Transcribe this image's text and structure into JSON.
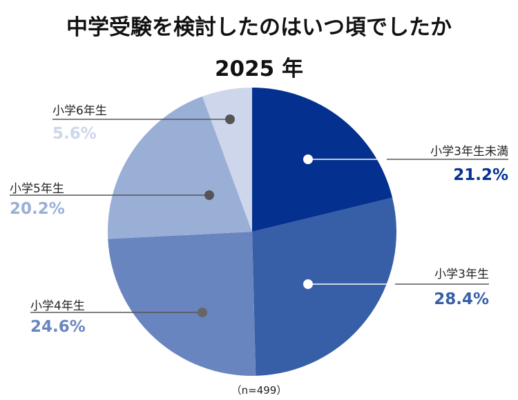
{
  "chart_data": {
    "type": "pie",
    "title": "中学受験を検討したのはいつ頃でしたか",
    "subtitle": "2025 年",
    "note": "（n=499）",
    "slices": [
      {
        "label": "小学3年生未満",
        "value": 21.2,
        "display": "21.2%",
        "color": "#04318F"
      },
      {
        "label": "小学3年生",
        "value": 28.4,
        "display": "28.4%",
        "color": "#365FA8"
      },
      {
        "label": "小学4年生",
        "value": 24.6,
        "display": "24.6%",
        "color": "#6985BF"
      },
      {
        "label": "小学5年生",
        "value": 20.2,
        "display": "20.2%",
        "color": "#9AAFD6"
      },
      {
        "label": "小学6年生",
        "value": 5.6,
        "display": "5.6%",
        "color": "#CDD6EA"
      }
    ]
  }
}
